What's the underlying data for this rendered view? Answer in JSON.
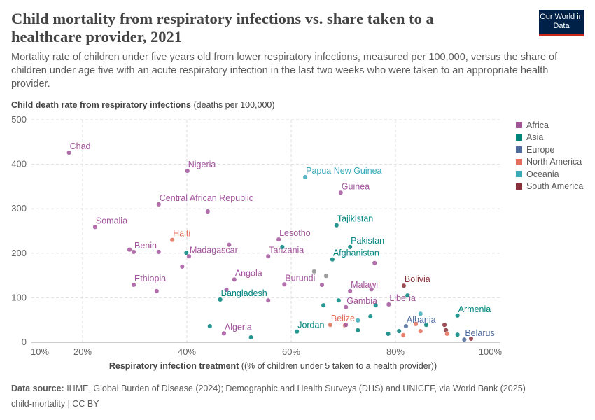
{
  "header": {
    "title": "Child mortality from respiratory infections vs. share taken to a healthcare provider, 2021",
    "subtitle": "Mortality rate of children under five years old from lower respiratory infections, measured per 100,000, versus the share of children under age five with an acute respiratory infection in the last two weeks who were taken to an appropriate health provider.",
    "logo": "Our World in Data"
  },
  "footer": {
    "source_label": "Data source:",
    "source": " IHME, Global Burden of Disease (2024); Demographic and Health Surveys (DHS) and UNICEF, via World Bank (2025)",
    "license": "child-mortality | CC BY"
  },
  "colors": {
    "Africa": "#a2559c",
    "Asia": "#00847e",
    "Europe": "#4c6a9c",
    "North America": "#e56e5a",
    "Oceania": "#38aaba",
    "South America": "#883039",
    "Other": "#8c8c8c"
  },
  "chart_data": {
    "type": "scatter",
    "ylabel_bold": "Child death rate from respiratory infections",
    "ylabel_unit": " (deaths per 100,000)",
    "xlabel_bold": "Respiratory infection treatment",
    "xlabel_unit": " ((% of children under 5 taken to a health provider))",
    "xlim": [
      10,
      100
    ],
    "ylim": [
      0,
      500
    ],
    "xticks": [
      "10%",
      "20%",
      "40%",
      "60%",
      "80%",
      "100%"
    ],
    "xtick_values": [
      10,
      20,
      40,
      60,
      80,
      100
    ],
    "yticks": [
      "0",
      "100",
      "200",
      "300",
      "400",
      "500"
    ],
    "grid": true,
    "legend_position": "right",
    "legend": [
      "Africa",
      "Asia",
      "Europe",
      "North America",
      "Oceania",
      "South America"
    ],
    "points": [
      {
        "label": "Chad",
        "x": 17.4,
        "y": 426,
        "region": "Africa"
      },
      {
        "label": "Nigeria",
        "x": 40.1,
        "y": 385,
        "region": "Africa"
      },
      {
        "label": "Central African Republic",
        "x": 34.6,
        "y": 310,
        "region": "Africa"
      },
      {
        "x": 44.0,
        "y": 294,
        "region": "Africa"
      },
      {
        "label": "Somalia",
        "x": 22.4,
        "y": 259,
        "region": "Africa"
      },
      {
        "label": "Haiti",
        "x": 37.2,
        "y": 230,
        "region": "North America"
      },
      {
        "x": 29.0,
        "y": 208,
        "region": "Africa"
      },
      {
        "label": "Benin",
        "x": 29.8,
        "y": 203,
        "region": "Africa"
      },
      {
        "x": 34.6,
        "y": 203,
        "region": "Africa"
      },
      {
        "x": 39.9,
        "y": 201,
        "region": "Asia"
      },
      {
        "label": "Madagascar",
        "x": 40.4,
        "y": 193,
        "region": "Africa"
      },
      {
        "x": 39.1,
        "y": 170,
        "region": "Africa"
      },
      {
        "label": "Lesotho",
        "x": 57.6,
        "y": 231,
        "region": "Africa"
      },
      {
        "x": 48.1,
        "y": 219,
        "region": "Africa"
      },
      {
        "label": "Tanzania",
        "x": 55.6,
        "y": 193,
        "region": "Africa"
      },
      {
        "x": 58.3,
        "y": 214,
        "region": "Asia"
      },
      {
        "label": "Angola",
        "x": 49.1,
        "y": 141,
        "region": "Africa"
      },
      {
        "label": "Ethiopia",
        "x": 29.8,
        "y": 129,
        "region": "Africa"
      },
      {
        "x": 34.2,
        "y": 115,
        "region": "Africa"
      },
      {
        "x": 47.6,
        "y": 118,
        "region": "Africa"
      },
      {
        "label": "Bangladesh",
        "x": 46.4,
        "y": 96,
        "region": "Asia"
      },
      {
        "x": 55.6,
        "y": 94,
        "region": "Africa"
      },
      {
        "label": "Burundi",
        "x": 58.7,
        "y": 130,
        "region": "Africa"
      },
      {
        "x": 44.4,
        "y": 36,
        "region": "Asia"
      },
      {
        "label": "Algeria",
        "x": 47.1,
        "y": 20,
        "region": "Africa"
      },
      {
        "x": 52.3,
        "y": 11,
        "region": "Asia"
      },
      {
        "label": "Papua New Guinea",
        "x": 62.7,
        "y": 371,
        "region": "Oceania"
      },
      {
        "label": "Guinea",
        "x": 69.5,
        "y": 336,
        "region": "Africa"
      },
      {
        "label": "Tajikistan",
        "x": 68.7,
        "y": 263,
        "region": "Asia"
      },
      {
        "label": "Pakistan",
        "x": 71.3,
        "y": 214,
        "region": "Asia"
      },
      {
        "label": "Afghanistan",
        "x": 67.9,
        "y": 186,
        "region": "Asia"
      },
      {
        "x": 76.0,
        "y": 178,
        "region": "Africa"
      },
      {
        "x": 64.4,
        "y": 159,
        "region": "Other"
      },
      {
        "x": 66.7,
        "y": 149,
        "region": "Other"
      },
      {
        "x": 65.9,
        "y": 129,
        "region": "Africa"
      },
      {
        "label": "Malawi",
        "x": 71.3,
        "y": 115,
        "region": "Africa"
      },
      {
        "x": 75.4,
        "y": 119,
        "region": "Africa"
      },
      {
        "label": "Bolivia",
        "x": 81.6,
        "y": 127,
        "region": "South America"
      },
      {
        "label": "Liberia",
        "x": 78.7,
        "y": 85,
        "region": "Africa"
      },
      {
        "x": 82.3,
        "y": 105,
        "region": "Asia"
      },
      {
        "x": 76.2,
        "y": 83,
        "region": "Asia"
      },
      {
        "x": 66.2,
        "y": 83,
        "region": "Asia"
      },
      {
        "x": 69.1,
        "y": 94,
        "region": "Asia"
      },
      {
        "label": "Gambia",
        "x": 70.5,
        "y": 79,
        "region": "Africa"
      },
      {
        "x": 84.8,
        "y": 64,
        "region": "Oceania"
      },
      {
        "label": "Armenia",
        "x": 91.9,
        "y": 60,
        "region": "Asia"
      },
      {
        "x": 75.2,
        "y": 58,
        "region": "Asia"
      },
      {
        "x": 72.8,
        "y": 49,
        "region": "Oceania"
      },
      {
        "label": "Belize",
        "x": 67.5,
        "y": 39,
        "region": "North America"
      },
      {
        "x": 70.3,
        "y": 38,
        "region": "North America"
      },
      {
        "x": 70.5,
        "y": 39,
        "region": "Africa"
      },
      {
        "label": "Albania",
        "x": 82.0,
        "y": 36,
        "region": "Europe"
      },
      {
        "x": 83.9,
        "y": 41,
        "region": "North America"
      },
      {
        "x": 85.9,
        "y": 39,
        "region": "Asia"
      },
      {
        "label": "Jordan",
        "x": 61.1,
        "y": 24,
        "region": "Asia"
      },
      {
        "x": 72.8,
        "y": 27,
        "region": "Asia"
      },
      {
        "x": 78.6,
        "y": 19,
        "region": "Asia"
      },
      {
        "x": 80.7,
        "y": 25,
        "region": "Asia"
      },
      {
        "x": 81.5,
        "y": 16,
        "region": "North America"
      },
      {
        "x": 84.8,
        "y": 25,
        "region": "North America"
      },
      {
        "x": 89.4,
        "y": 39,
        "region": "South America"
      },
      {
        "x": 89.7,
        "y": 27,
        "region": "South America"
      },
      {
        "x": 89.9,
        "y": 19,
        "region": "North America"
      },
      {
        "x": 91.9,
        "y": 17,
        "region": "Asia"
      },
      {
        "label": "Belarus",
        "x": 93.2,
        "y": 6,
        "region": "Europe"
      },
      {
        "x": 94.5,
        "y": 8,
        "region": "South America"
      }
    ]
  }
}
